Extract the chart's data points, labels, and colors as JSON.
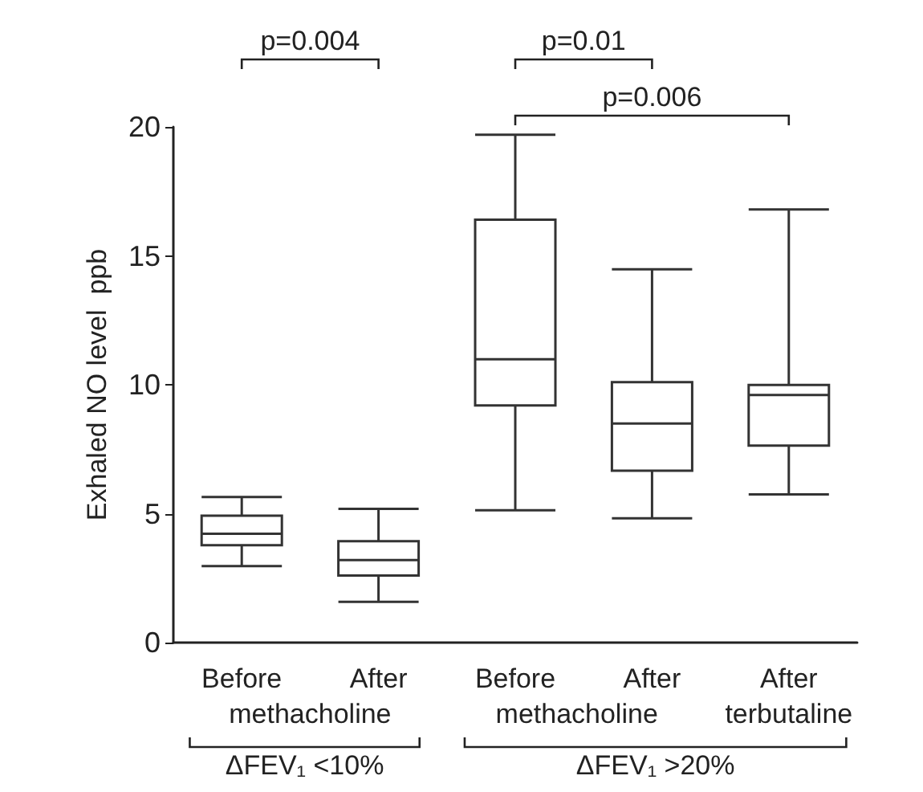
{
  "chart_data": {
    "type": "box",
    "ylabel": "Exhaled NO level  ppb",
    "categories": [
      "Before",
      "After",
      "Before",
      "After",
      "After"
    ],
    "boxes": [
      {
        "low": 2.97,
        "q1": 3.78,
        "median": 4.22,
        "q3": 4.92,
        "high": 5.65
      },
      {
        "low": 1.58,
        "q1": 2.6,
        "median": 3.2,
        "q3": 3.93,
        "high": 5.19
      },
      {
        "low": 5.13,
        "q1": 9.2,
        "median": 10.99,
        "q3": 16.4,
        "high": 19.7
      },
      {
        "low": 4.82,
        "q1": 6.67,
        "median": 8.5,
        "q3": 10.1,
        "high": 14.48
      },
      {
        "low": 5.75,
        "q1": 7.64,
        "median": 9.6,
        "q3": 9.99,
        "high": 16.8
      }
    ],
    "color": "#333333",
    "ylim": [
      0,
      20
    ],
    "yticks": [
      0,
      5,
      10,
      15,
      20
    ],
    "grid": false,
    "annotations": [
      "p=0.004",
      "p=0.01",
      "p=0.006",
      "methacholine",
      "methacholine",
      "terbutaline",
      "ΔFEV₁ <10%",
      "ΔFEV₁ >20%"
    ]
  }
}
